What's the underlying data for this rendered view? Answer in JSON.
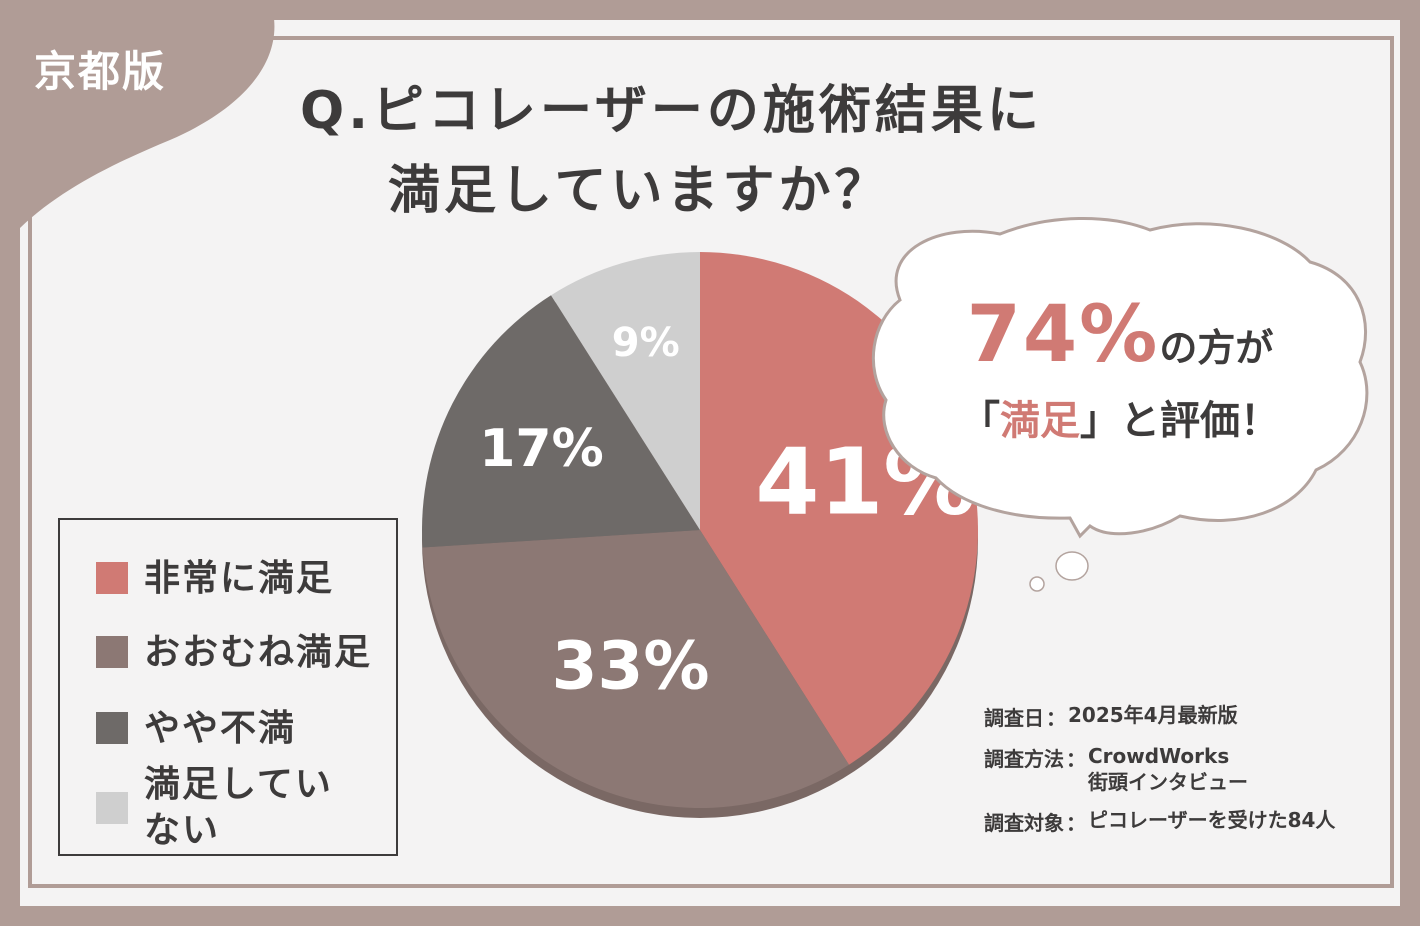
{
  "region_label": "京都版",
  "title": {
    "line1": "Q.ピコレーザーの施術結果に",
    "line2": "満足していますか？"
  },
  "callout": {
    "percent": "74%",
    "line1_suffix": "の方が",
    "line2_open": "「",
    "line2_highlight": "満足",
    "line2_close": "」と評価！"
  },
  "legend": [
    {
      "label": "非常に満足",
      "color": "#d07a74"
    },
    {
      "label": "おおむね満足",
      "color": "#8c7874"
    },
    {
      "label": "やや不満",
      "color": "#6e6a68"
    },
    {
      "label": "満足していない",
      "color": "#cfcfcf"
    }
  ],
  "survey_info": [
    {
      "key": "調査日",
      "sep": "：",
      "value": "2025年4月最新版"
    },
    {
      "key": "調査方法",
      "sep": "：",
      "value": "CrowdWorks\n街頭インタビュー"
    },
    {
      "key": "調査対象",
      "sep": "：",
      "value": "ピコレーザーを受けた84人"
    }
  ],
  "chart_data": {
    "type": "pie",
    "categories": [
      "非常に満足",
      "おおむね満足",
      "やや不満",
      "満足していない"
    ],
    "values": [
      41,
      33,
      17,
      9
    ],
    "labels": [
      "41%",
      "33%",
      "17%",
      "9%"
    ],
    "colors": [
      "#d07a74",
      "#8c7874",
      "#6e6a68",
      "#cfcfcf"
    ],
    "start": "top",
    "direction": "clockwise"
  }
}
